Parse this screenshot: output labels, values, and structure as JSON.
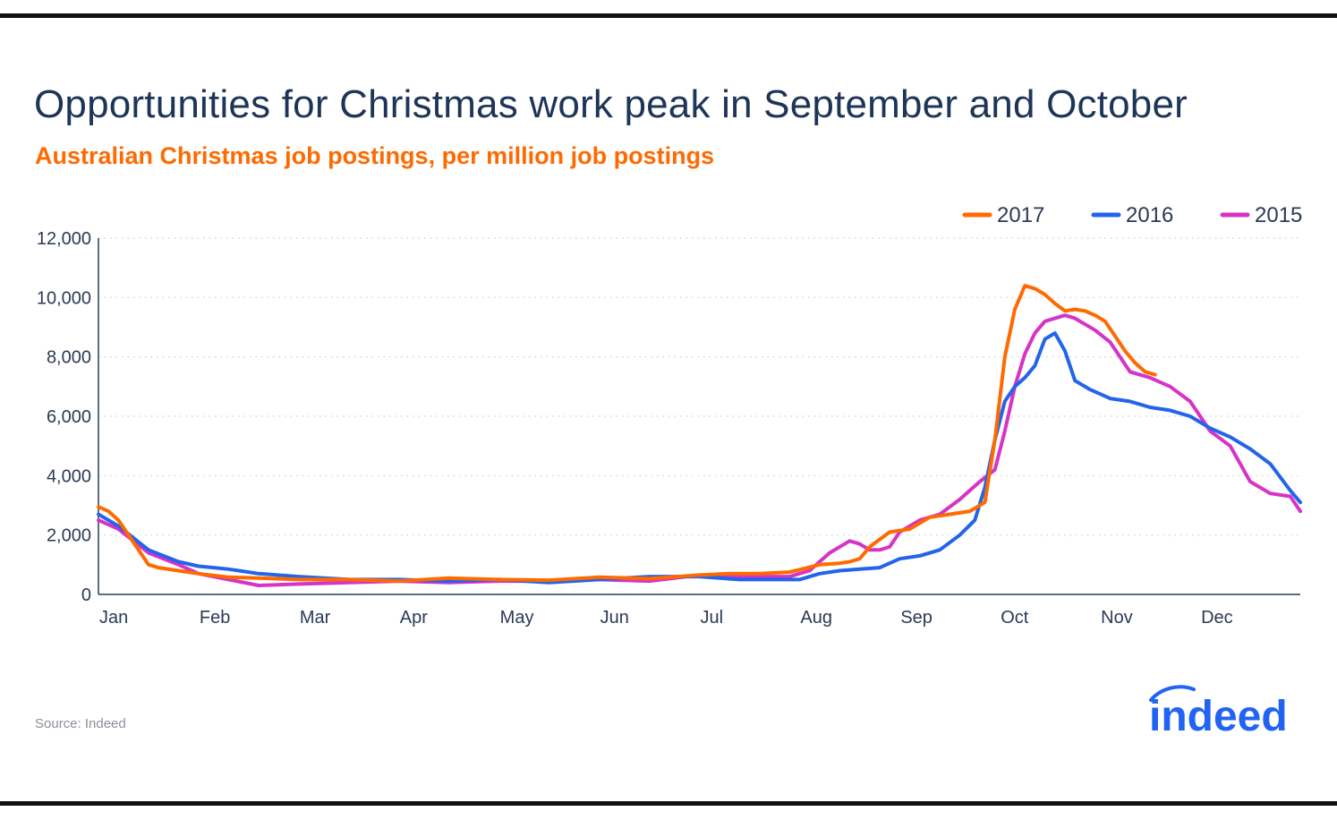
{
  "header": {
    "title": "Opportunities for Christmas work peak in September and October",
    "subtitle": "Australian Christmas job postings, per million job postings"
  },
  "footer": {
    "source": "Source: Indeed",
    "logo_text": "indeed"
  },
  "colors": {
    "title": "#1d3557",
    "subtitle": "#ff6a00",
    "axis": "#2b3a55",
    "grid": "#c8ccd4"
  },
  "chart_data": {
    "type": "line",
    "title": "Opportunities for Christmas work peak in September and October",
    "subtitle": "Australian Christmas job postings, per million job postings",
    "xlabel": "",
    "ylabel": "",
    "x_ticks": [
      "Jan",
      "Feb",
      "Mar",
      "Apr",
      "May",
      "Jun",
      "Jul",
      "Aug",
      "Sep",
      "Oct",
      "Nov",
      "Dec"
    ],
    "y_ticks": [
      "0",
      "2,000",
      "4,000",
      "6,000",
      "8,000",
      "10,000",
      "12,000"
    ],
    "xlim": [
      0,
      12
    ],
    "ylim": [
      0,
      12000
    ],
    "grid": "horizontal dotted",
    "legend": "top-right",
    "series": [
      {
        "name": "2017",
        "color": "#ff6a00",
        "x": [
          0,
          0.1,
          0.2,
          0.3,
          0.4,
          0.5,
          0.6,
          0.8,
          1.0,
          1.3,
          1.6,
          2.0,
          2.5,
          3.0,
          3.5,
          4.0,
          4.5,
          5.0,
          5.5,
          6.0,
          6.3,
          6.6,
          6.9,
          7.2,
          7.4,
          7.5,
          7.6,
          7.7,
          7.9,
          8.1,
          8.3,
          8.5,
          8.7,
          8.85,
          8.95,
          9.05,
          9.15,
          9.25,
          9.35,
          9.45,
          9.55,
          9.65,
          9.75,
          9.85,
          9.95,
          10.05,
          10.15,
          10.25,
          10.35,
          10.45,
          10.55
        ],
        "values": [
          2950,
          2800,
          2500,
          2000,
          1500,
          1000,
          900,
          800,
          700,
          580,
          550,
          500,
          500,
          450,
          550,
          500,
          480,
          580,
          530,
          650,
          700,
          700,
          750,
          1000,
          1050,
          1100,
          1200,
          1600,
          2100,
          2200,
          2600,
          2700,
          2800,
          3100,
          5200,
          8000,
          9600,
          10400,
          10300,
          10100,
          9800,
          9550,
          9600,
          9550,
          9400,
          9200,
          8700,
          8200,
          7800,
          7500,
          7400
        ]
      },
      {
        "name": "2016",
        "color": "#2464ea",
        "x": [
          0,
          0.2,
          0.5,
          0.8,
          1.0,
          1.3,
          1.6,
          2.0,
          2.5,
          3.0,
          3.5,
          4.0,
          4.5,
          5.0,
          5.5,
          6.0,
          6.2,
          6.4,
          6.6,
          6.8,
          7.0,
          7.2,
          7.4,
          7.6,
          7.8,
          8.0,
          8.2,
          8.4,
          8.6,
          8.75,
          8.85,
          8.95,
          9.05,
          9.15,
          9.25,
          9.35,
          9.45,
          9.55,
          9.65,
          9.75,
          9.9,
          10.1,
          10.3,
          10.5,
          10.7,
          10.9,
          11.1,
          11.3,
          11.5,
          11.7,
          11.9,
          12.0
        ],
        "values": [
          2700,
          2300,
          1500,
          1100,
          950,
          850,
          700,
          600,
          500,
          500,
          450,
          500,
          400,
          500,
          600,
          600,
          550,
          500,
          500,
          500,
          500,
          700,
          800,
          850,
          900,
          1200,
          1300,
          1500,
          2000,
          2500,
          3600,
          5200,
          6500,
          7000,
          7300,
          7700,
          8600,
          8800,
          8200,
          7200,
          6900,
          6600,
          6500,
          6300,
          6200,
          6000,
          5600,
          5300,
          4900,
          4400,
          3500,
          3100
        ]
      },
      {
        "name": "2015",
        "color": "#d633c7",
        "x": [
          0,
          0.2,
          0.5,
          0.8,
          1.0,
          1.3,
          1.6,
          2.0,
          2.5,
          3.0,
          3.5,
          4.0,
          4.5,
          5.0,
          5.5,
          6.0,
          6.3,
          6.6,
          6.9,
          7.1,
          7.3,
          7.5,
          7.6,
          7.7,
          7.8,
          7.9,
          8.0,
          8.2,
          8.4,
          8.6,
          8.7,
          8.8,
          8.95,
          9.05,
          9.15,
          9.25,
          9.35,
          9.45,
          9.55,
          9.65,
          9.75,
          9.85,
          9.95,
          10.1,
          10.3,
          10.5,
          10.7,
          10.9,
          11.1,
          11.3,
          11.5,
          11.7,
          11.9,
          12.0
        ],
        "values": [
          2500,
          2200,
          1400,
          1000,
          700,
          500,
          300,
          350,
          400,
          450,
          400,
          450,
          450,
          500,
          450,
          650,
          600,
          600,
          600,
          800,
          1400,
          1800,
          1700,
          1500,
          1500,
          1600,
          2100,
          2500,
          2700,
          3200,
          3500,
          3800,
          4200,
          5500,
          7000,
          8100,
          8800,
          9200,
          9300,
          9400,
          9300,
          9100,
          8900,
          8500,
          7500,
          7300,
          7000,
          6500,
          5500,
          5000,
          3800,
          3400,
          3300,
          2800
        ]
      }
    ]
  }
}
